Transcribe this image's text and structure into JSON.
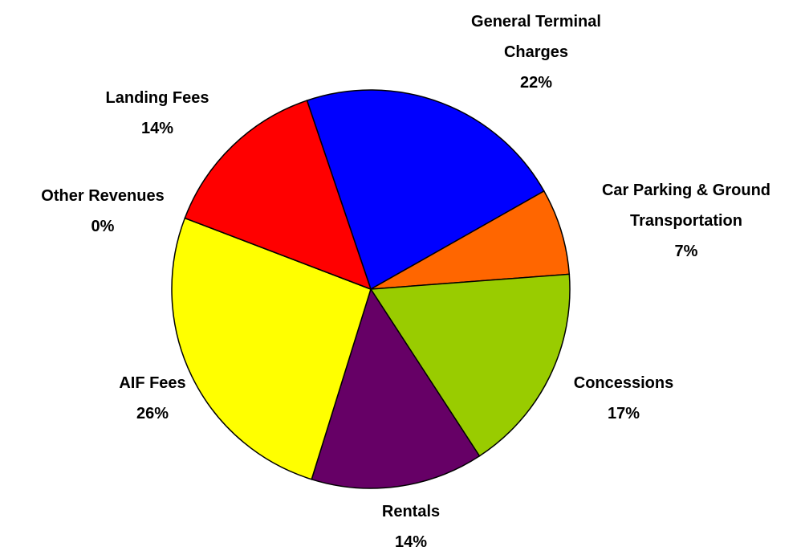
{
  "chart_data": {
    "type": "pie",
    "categories": [
      "General Terminal Charges",
      "Car Parking & Ground Transportation",
      "Concessions",
      "Rentals",
      "AIF Fees",
      "Other Revenues",
      "Landing Fees"
    ],
    "values": [
      22,
      7,
      17,
      14,
      26,
      0,
      14
    ],
    "value_labels": [
      "22%",
      "7%",
      "17%",
      "14%",
      "26%",
      "0%",
      "14%"
    ],
    "colors": [
      "#0000ff",
      "#ff6600",
      "#99cc00",
      "#660066",
      "#ffff00",
      "#00ccff",
      "#ff0000"
    ]
  }
}
